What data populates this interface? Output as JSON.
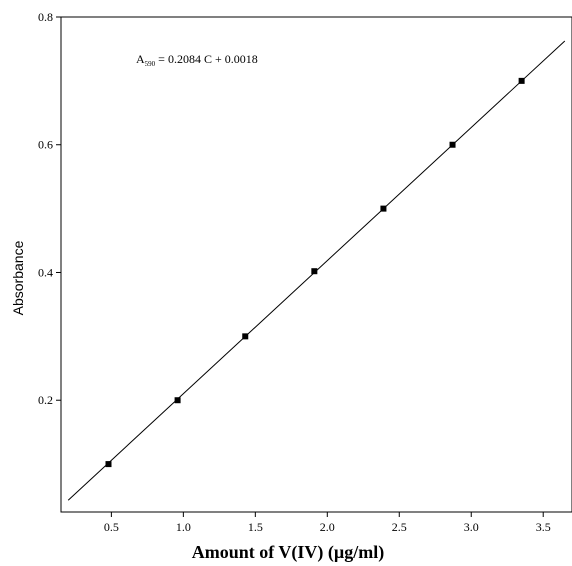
{
  "chart_data": {
    "type": "scatter",
    "xlabel": "Amount of V(IV) (µg/ml)",
    "ylabel": "Absorbance",
    "xlim": [
      0.15,
      3.7
    ],
    "ylim": [
      0.025,
      0.8
    ],
    "x_ticks": [
      0.5,
      1.0,
      1.5,
      2.0,
      2.5,
      3.0,
      3.5
    ],
    "x_tick_labels": [
      "0.5",
      "1.0",
      "1.5",
      "2.0",
      "2.5",
      "3.0",
      "3.5"
    ],
    "y_ticks": [
      0.2,
      0.4,
      0.6,
      0.8
    ],
    "y_tick_labels": [
      "0.2",
      "0.4",
      "0.6",
      "0.8"
    ],
    "grid": false,
    "legend": "none",
    "series": [
      {
        "x": [
          0.48,
          0.96,
          1.43,
          1.91,
          2.39,
          2.87,
          3.35
        ],
        "y": [
          0.1,
          0.2,
          0.3,
          0.402,
          0.5,
          0.6,
          0.7
        ]
      }
    ],
    "fit_line": {
      "slope": 0.2084,
      "intercept": 0.0018,
      "x_range": [
        0.2,
        3.65
      ]
    },
    "annotation": {
      "prefix": "A",
      "subscript": "590",
      "rest": " = 0.2084 C + 0.0018"
    }
  }
}
